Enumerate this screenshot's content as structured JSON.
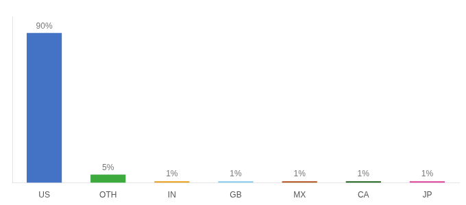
{
  "chart_data": {
    "type": "bar",
    "categories": [
      "US",
      "OTH",
      "IN",
      "GB",
      "MX",
      "CA",
      "JP"
    ],
    "values": [
      90,
      5,
      1,
      1,
      1,
      1,
      1
    ],
    "value_labels": [
      "90%",
      "5%",
      "1%",
      "1%",
      "1%",
      "1%",
      "1%"
    ],
    "colors": [
      "#4472c4",
      "#3daa3d",
      "#e8a020",
      "#88ccee",
      "#b05520",
      "#226622",
      "#dd4499"
    ],
    "ylim": [
      0,
      100
    ],
    "grid": false,
    "data_labels": true,
    "tick_labels": "x"
  }
}
